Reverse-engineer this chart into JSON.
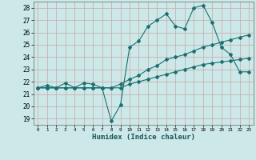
{
  "xlabel": "Humidex (Indice chaleur)",
  "bg_color": "#cce8e8",
  "grid_color": "#c8a8a8",
  "line_color": "#1a7070",
  "xlim": [
    -0.5,
    23.5
  ],
  "ylim": [
    18.5,
    28.5
  ],
  "xticks": [
    0,
    1,
    2,
    3,
    4,
    5,
    6,
    7,
    8,
    9,
    10,
    11,
    12,
    13,
    14,
    15,
    16,
    17,
    18,
    19,
    20,
    21,
    22,
    23
  ],
  "yticks": [
    19,
    20,
    21,
    22,
    23,
    24,
    25,
    26,
    27,
    28
  ],
  "line1_x": [
    0,
    1,
    2,
    3,
    4,
    5,
    6,
    7,
    8,
    9,
    10,
    11,
    12,
    13,
    14,
    15,
    16,
    17,
    18,
    19,
    20,
    21,
    22,
    23
  ],
  "line1_y": [
    21.5,
    21.7,
    21.5,
    21.9,
    21.5,
    21.9,
    21.8,
    21.5,
    18.8,
    20.1,
    24.8,
    25.3,
    26.5,
    27.0,
    27.5,
    26.5,
    26.3,
    28.0,
    28.2,
    26.8,
    24.8,
    24.2,
    22.8,
    22.8
  ],
  "line2_x": [
    0,
    1,
    2,
    3,
    4,
    5,
    6,
    7,
    8,
    9,
    10,
    11,
    12,
    13,
    14,
    15,
    16,
    17,
    18,
    19,
    20,
    21,
    22,
    23
  ],
  "line2_y": [
    21.5,
    21.5,
    21.5,
    21.5,
    21.5,
    21.5,
    21.5,
    21.5,
    21.5,
    21.8,
    22.2,
    22.5,
    23.0,
    23.3,
    23.8,
    24.0,
    24.2,
    24.5,
    24.8,
    25.0,
    25.2,
    25.4,
    25.6,
    25.8
  ],
  "line3_x": [
    0,
    1,
    2,
    3,
    4,
    5,
    6,
    7,
    8,
    9,
    10,
    11,
    12,
    13,
    14,
    15,
    16,
    17,
    18,
    19,
    20,
    21,
    22,
    23
  ],
  "line3_y": [
    21.5,
    21.5,
    21.5,
    21.5,
    21.5,
    21.5,
    21.5,
    21.5,
    21.5,
    21.5,
    21.8,
    22.0,
    22.2,
    22.4,
    22.6,
    22.8,
    23.0,
    23.2,
    23.4,
    23.5,
    23.6,
    23.7,
    23.8,
    23.9
  ]
}
